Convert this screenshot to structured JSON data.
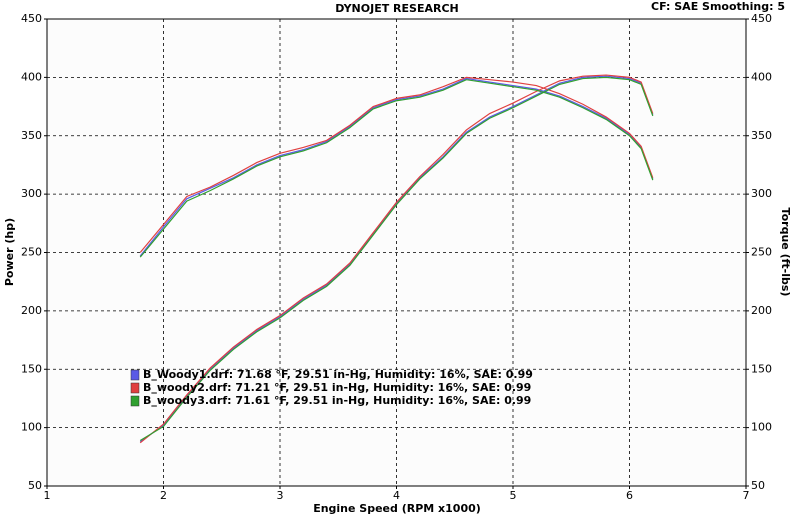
{
  "chart_data": {
    "type": "line",
    "title": "DYNOJET RESEARCH",
    "subtitle": "CF: SAE  Smoothing: 5",
    "x_label": "Engine Speed (RPM x1000)",
    "y_label": "Power (hp)",
    "y2_label": "Torque (ft-lbs)",
    "xlim": [
      1,
      7
    ],
    "xticks": [
      1,
      2,
      3,
      4,
      5,
      6,
      7
    ],
    "ylim": [
      50,
      450
    ],
    "yticks": [
      50,
      100,
      150,
      200,
      250,
      300,
      350,
      400,
      450
    ],
    "y2lim": [
      50,
      450
    ],
    "y2ticks": [
      50,
      100,
      150,
      200,
      250,
      300,
      350,
      400,
      450
    ],
    "grid": true,
    "x": [
      1.8,
      2.0,
      2.2,
      2.4,
      2.6,
      2.8,
      3.0,
      3.2,
      3.4,
      3.6,
      3.8,
      4.0,
      4.2,
      4.4,
      4.6,
      4.8,
      5.0,
      5.2,
      5.4,
      5.6,
      5.8,
      6.0,
      6.1,
      6.2
    ],
    "runs": [
      {
        "name": "B_Woody1.drf: 71.68 °F, 29.51 in-Hg, Humidity: 16%, SAE: 0.99",
        "color": "#5a5ae6",
        "power": [
          88,
          102,
          127,
          150,
          168,
          183,
          195,
          210,
          222,
          240,
          266,
          292,
          314,
          332,
          353,
          366,
          375,
          385,
          395,
          400,
          401,
          399,
          395,
          368
        ],
        "torque": [
          247,
          272,
          296,
          305,
          314,
          325,
          333,
          338,
          345,
          358,
          374,
          381,
          384,
          390,
          399,
          396,
          393,
          390,
          384,
          375,
          365,
          351,
          340,
          313
        ]
      },
      {
        "name": "B_woody2.drf: 71.21 °F, 29.51 in-Hg, Humidity: 16%, SAE: 0.99",
        "color": "#e04040",
        "power": [
          87,
          103,
          128,
          151,
          169,
          184,
          196,
          211,
          223,
          241,
          267,
          293,
          315,
          334,
          355,
          369,
          378,
          388,
          397,
          401,
          402,
          400,
          396,
          369
        ],
        "torque": [
          250,
          274,
          298,
          306,
          316,
          327,
          335,
          340,
          346,
          359,
          375,
          382,
          385,
          392,
          400,
          398,
          396,
          393,
          386,
          377,
          366,
          352,
          341,
          314
        ]
      },
      {
        "name": "B_woody3.drf: 71.61 °F, 29.51 in-Hg, Humidity: 16%, SAE: 0.99",
        "color": "#30a030",
        "power": [
          89,
          101,
          126,
          149,
          167,
          182,
          194,
          209,
          221,
          239,
          265,
          291,
          313,
          331,
          352,
          365,
          374,
          384,
          394,
          399,
          400,
          398,
          394,
          367
        ],
        "torque": [
          246,
          270,
          294,
          303,
          313,
          324,
          332,
          337,
          344,
          357,
          373,
          380,
          383,
          389,
          398,
          395,
          392,
          389,
          383,
          374,
          364,
          350,
          339,
          312
        ]
      }
    ]
  }
}
